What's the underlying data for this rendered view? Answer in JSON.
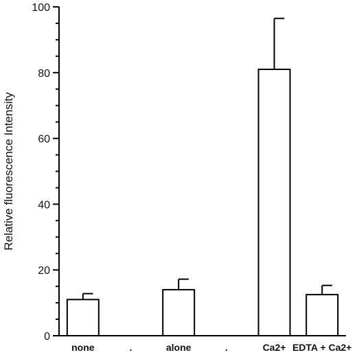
{
  "chart_data": {
    "type": "bar",
    "title": "",
    "xlabel": "",
    "ylabel": "Relative fluorescence Intensity",
    "ylim": [
      0,
      100
    ],
    "yticks": [
      0,
      20,
      40,
      60,
      80,
      100
    ],
    "yminor_step": 5,
    "grid": false,
    "categories": [
      "none",
      ".",
      "alone",
      ".",
      "Ca2+",
      "EDTA  + Ca2+"
    ],
    "values": [
      11,
      null,
      14,
      null,
      81,
      12.5
    ],
    "errors": [
      1.8,
      null,
      3.2,
      null,
      15.5,
      2.8
    ],
    "bar_color": "#ffffff",
    "edge_color": "#000000"
  }
}
